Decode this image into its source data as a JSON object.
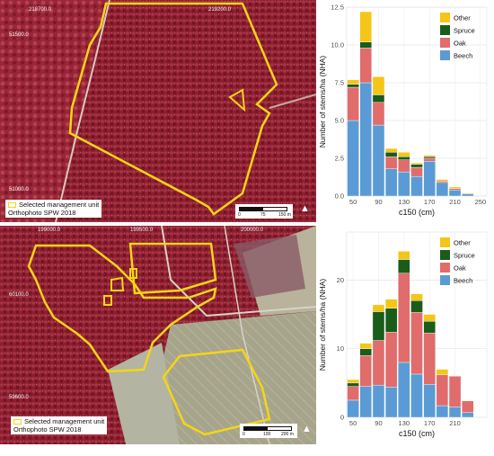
{
  "maps": [
    {
      "coords": [
        "218700.0",
        "219200.0",
        "51500.0",
        "51000.0"
      ],
      "legend_unit": "Selected management unit",
      "legend_source": "Orthophoto SPW 2018",
      "scale_ticks": [
        "0",
        "75",
        "150 m"
      ],
      "north": "▲"
    },
    {
      "coords": [
        "199000.0",
        "199500.0",
        "200000.0",
        "60100.0",
        "59600.0"
      ],
      "legend_unit": "Selected management unit",
      "legend_source": "Orthophoto SPW 2018",
      "scale_ticks": [
        "0",
        "100",
        "200 m"
      ],
      "north": "▲"
    }
  ],
  "colors": {
    "Beech": "#5b9bd5",
    "Oak": "#e06c6c",
    "Spruce": "#1a5c1a",
    "Other": "#f5c518",
    "boundary": "#f5d515"
  },
  "chart_data": [
    {
      "type": "bar",
      "stacked": true,
      "x": [
        50,
        70,
        90,
        110,
        130,
        150,
        170,
        190,
        210,
        230
      ],
      "series": [
        {
          "name": "Beech",
          "values": [
            5.0,
            7.5,
            4.7,
            1.8,
            1.6,
            1.3,
            2.3,
            0.9,
            0.4,
            0.15
          ]
        },
        {
          "name": "Oak",
          "values": [
            2.2,
            2.3,
            1.5,
            0.8,
            0.8,
            0.6,
            0.2,
            0.1,
            0.1,
            0.0
          ]
        },
        {
          "name": "Spruce",
          "values": [
            0.2,
            0.4,
            0.5,
            0.3,
            0.2,
            0.2,
            0.1,
            0.0,
            0.0,
            0.0
          ]
        },
        {
          "name": "Other",
          "values": [
            0.3,
            2.0,
            1.2,
            0.25,
            0.3,
            0.1,
            0.1,
            0.1,
            0.1,
            0.05
          ]
        }
      ],
      "xlabel": "c150 (cm)",
      "ylabel": "Number of stems/ha (NHA)",
      "xticks": [
        "50",
        "90",
        "130",
        "170",
        "210",
        "250"
      ],
      "yticks": [
        "0.0",
        "2.5",
        "5.0",
        "7.5",
        "10.0",
        "12.5"
      ],
      "ylim": [
        0,
        12.5
      ],
      "grid": true,
      "legend": "top-right"
    },
    {
      "type": "bar",
      "stacked": true,
      "x": [
        50,
        70,
        90,
        110,
        130,
        150,
        170,
        190,
        210,
        230
      ],
      "series": [
        {
          "name": "Beech",
          "values": [
            2.5,
            4.5,
            4.7,
            4.4,
            8.0,
            6.3,
            4.8,
            1.7,
            1.5,
            0.7
          ]
        },
        {
          "name": "Oak",
          "values": [
            2.0,
            4.5,
            6.5,
            8.0,
            13.0,
            9.0,
            7.5,
            4.5,
            4.5,
            1.7
          ]
        },
        {
          "name": "Spruce",
          "values": [
            0.5,
            1.0,
            4.2,
            3.5,
            2.0,
            1.7,
            1.7,
            0.0,
            0.0,
            0.0
          ]
        },
        {
          "name": "Other",
          "values": [
            0.5,
            0.8,
            1.0,
            1.3,
            1.2,
            1.0,
            1.0,
            0.8,
            0.0,
            0.0
          ]
        }
      ],
      "xlabel": "c150 (cm)",
      "ylabel": "Number of stems/ha (NHA)",
      "xticks": [
        "50",
        "90",
        "130",
        "170",
        "210"
      ],
      "yticks": [
        "0",
        "10",
        "20"
      ],
      "ylim": [
        0,
        27
      ],
      "grid": true,
      "legend": "top-right"
    }
  ]
}
